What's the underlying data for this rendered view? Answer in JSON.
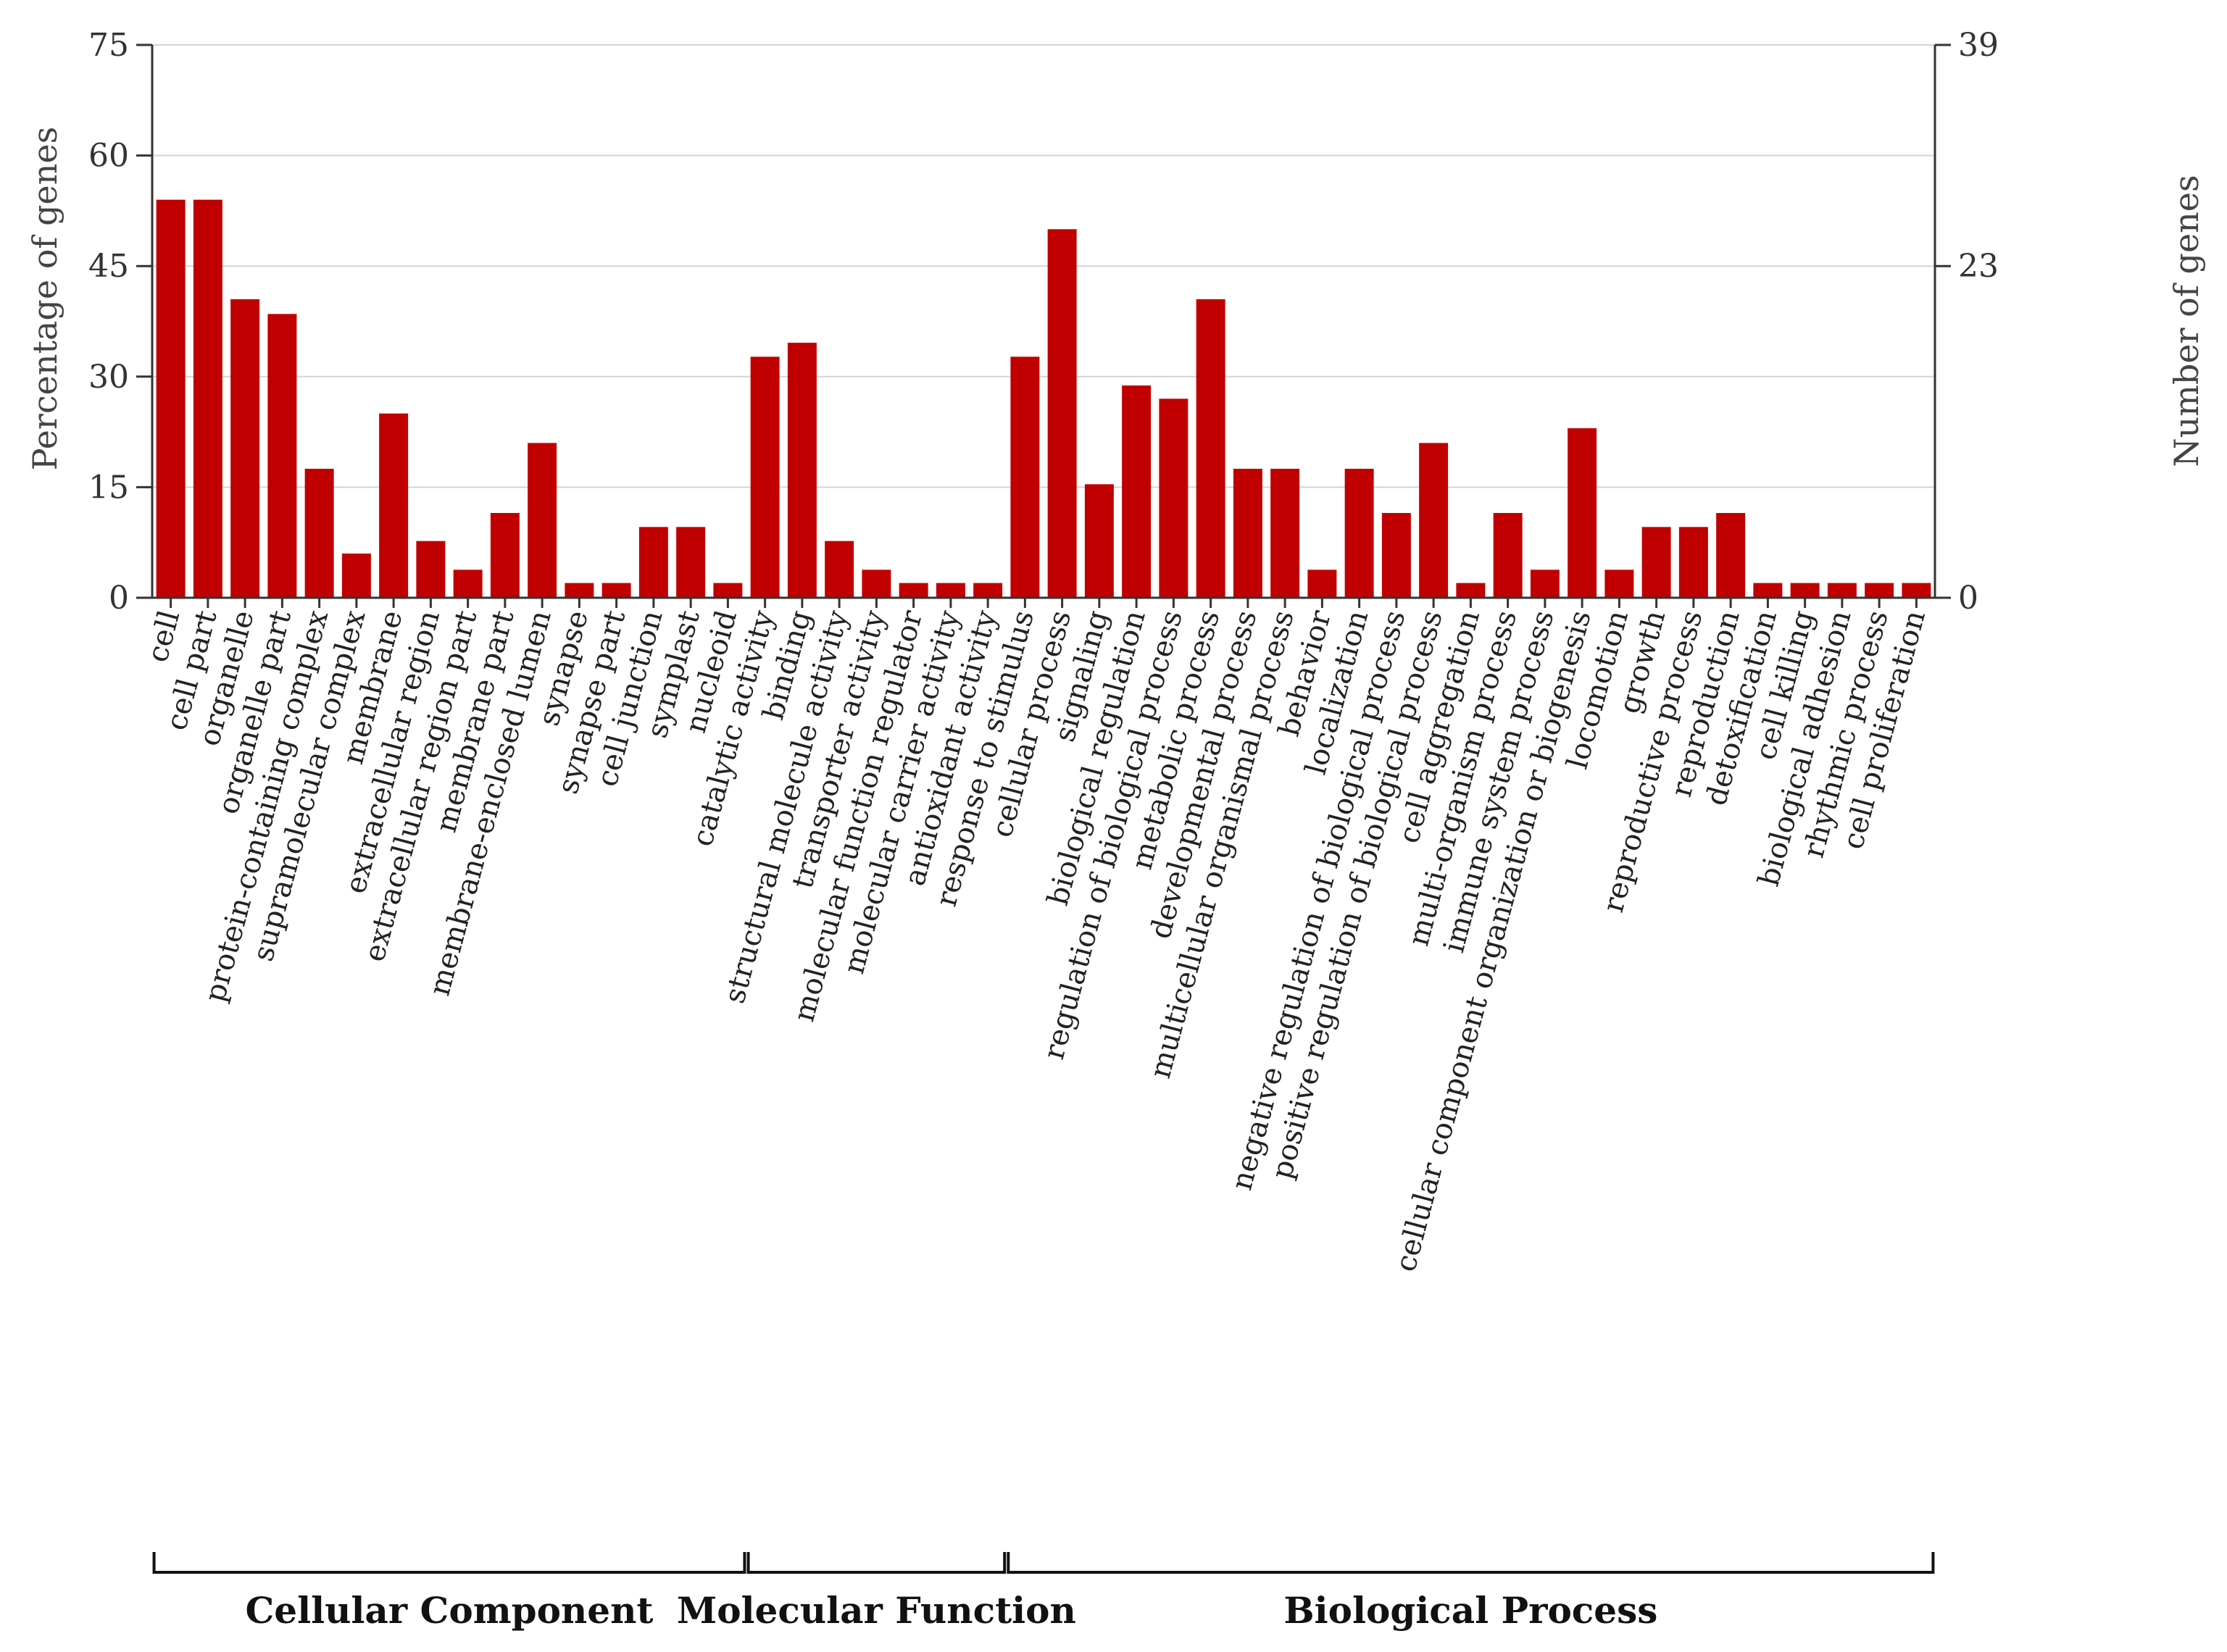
{
  "chart_data": {
    "type": "bar",
    "y_left": {
      "label": "Percentage of genes",
      "ylim": [
        0,
        75
      ],
      "ticks": [
        0,
        15,
        30,
        45,
        60,
        75
      ]
    },
    "y_right": {
      "label": "Number of genes",
      "ticks": [
        "0",
        "23",
        "39"
      ]
    },
    "categories": [
      "cell",
      "cell part",
      "organelle",
      "organelle part",
      "protein-containing complex",
      "supramolecular complex",
      "membrane",
      "extracellular region",
      "extracellular region part",
      "membrane part",
      "membrane-enclosed lumen",
      "synapse",
      "synapse part",
      "cell junction",
      "symplast",
      "nucleoid",
      "catalytic activity",
      "binding",
      "structural molecule activity",
      "transporter activity",
      "molecular function regulator",
      "molecular carrier activity",
      "antioxidant activity",
      "response to stimulus",
      "cellular process",
      "signaling",
      "biological regulation",
      "regulation of biological process",
      "metabolic process",
      "developmental process",
      "multicellular organismal process",
      "behavior",
      "localization",
      "negative regulation of biological process",
      "positive regulation of biological process",
      "cell aggregation",
      "multi-organism process",
      "immune system process",
      "cellular component organization or biogenesis",
      "locomotion",
      "growth",
      "reproductive process",
      "reproduction",
      "detoxification",
      "cell killing",
      "biological adhesion",
      "rhythmic process",
      "cell proliferation"
    ],
    "values": [
      54,
      54,
      40.5,
      38.5,
      17.5,
      6,
      25,
      7.7,
      3.8,
      11.5,
      21,
      2,
      2,
      9.6,
      9.6,
      2,
      32.7,
      34.6,
      7.7,
      3.8,
      2,
      2,
      2,
      32.7,
      50,
      15.4,
      28.8,
      27,
      40.5,
      17.5,
      17.5,
      3.8,
      17.5,
      11.5,
      21,
      2,
      11.5,
      3.8,
      23,
      3.8,
      9.6,
      9.6,
      11.5,
      2,
      2,
      2,
      2,
      2
    ],
    "groups": [
      {
        "name": "Cellular Component",
        "start": 0,
        "end": 15
      },
      {
        "name": "Molecular Function",
        "start": 16,
        "end": 22
      },
      {
        "name": "Biological Process",
        "start": 23,
        "end": 47
      }
    ],
    "bar_color": "#c00000"
  }
}
